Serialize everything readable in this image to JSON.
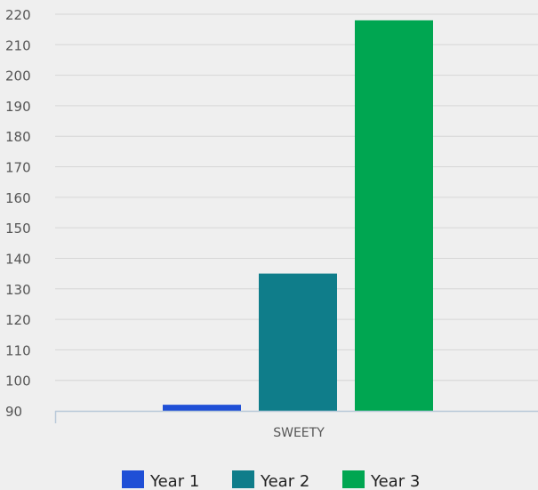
{
  "chart_data": {
    "type": "bar",
    "categories": [
      "SWEETY"
    ],
    "series": [
      {
        "name": "Year 1",
        "values": [
          92
        ],
        "color": "#1f4fd6"
      },
      {
        "name": "Year 2",
        "values": [
          135
        ],
        "color": "#0f7d8a"
      },
      {
        "name": "Year 3",
        "values": [
          218
        ],
        "color": "#00a651"
      }
    ],
    "yticks": [
      "90",
      "100",
      "110",
      "120",
      "130",
      "140",
      "150",
      "160",
      "170",
      "180",
      "190",
      "200",
      "210",
      "220"
    ],
    "ylim": [
      90,
      220
    ],
    "grid": true,
    "legend": "bottom"
  }
}
